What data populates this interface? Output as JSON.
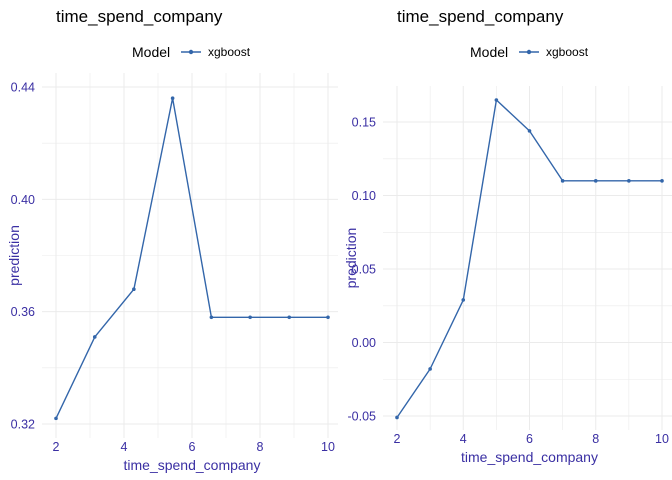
{
  "colors": {
    "series": "#3366aa",
    "axis_text": "#3a2fa3",
    "grid": "#ebebeb"
  },
  "legend_title": "Model",
  "chart_data": [
    {
      "type": "line",
      "title": "time_spend_company",
      "xlabel": "time_spend_company",
      "ylabel": "prediction",
      "xlim": [
        2,
        10
      ],
      "ylim": [
        0.32,
        0.44
      ],
      "x_ticks": [
        2,
        4,
        6,
        8,
        10
      ],
      "y_ticks": [
        0.32,
        0.36,
        0.4,
        0.44
      ],
      "y_tick_labels": [
        "0.32",
        "0.36",
        "0.40",
        "0.44"
      ],
      "grid": true,
      "legend": "top",
      "series": [
        {
          "name": "xgboost",
          "x": [
            2,
            3.14,
            4.29,
            5.43,
            6.57,
            7.71,
            8.86,
            10
          ],
          "y": [
            0.322,
            0.351,
            0.368,
            0.436,
            0.358,
            0.358,
            0.358,
            0.358
          ]
        }
      ]
    },
    {
      "type": "line",
      "title": "time_spend_company",
      "xlabel": "time_spend_company",
      "ylabel": "prediction",
      "xlim": [
        2,
        10
      ],
      "ylim": [
        -0.05,
        0.165
      ],
      "x_ticks": [
        2,
        4,
        6,
        8,
        10
      ],
      "y_ticks": [
        -0.05,
        0.0,
        0.05,
        0.1,
        0.15
      ],
      "y_tick_labels": [
        "-0.05",
        "0.00",
        "0.05",
        "0.10",
        "0.15"
      ],
      "grid": true,
      "legend": "top",
      "series": [
        {
          "name": "xgboost",
          "x": [
            2,
            3,
            4,
            5,
            6,
            7,
            8,
            9,
            10
          ],
          "y": [
            -0.051,
            -0.018,
            0.029,
            0.165,
            0.144,
            0.11,
            0.11,
            0.11,
            0.11
          ]
        }
      ]
    }
  ]
}
